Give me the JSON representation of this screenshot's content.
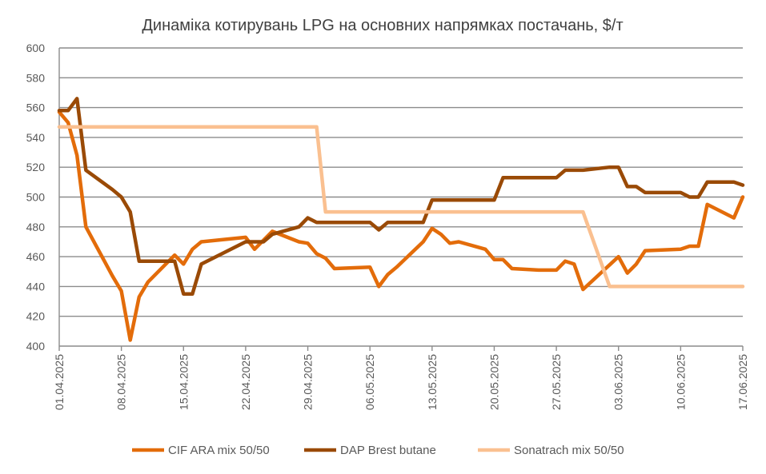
{
  "chart_data": {
    "type": "line",
    "title": "Динаміка котирувань LPG на основних напрямках постачань, $/т",
    "xlabel": "",
    "ylabel": "",
    "x_unit": "days since 01.04.2025",
    "xlim": [
      0,
      77
    ],
    "ylim": [
      400,
      600
    ],
    "y_ticks": [
      400,
      420,
      440,
      460,
      480,
      500,
      520,
      540,
      560,
      580,
      600
    ],
    "x_ticks": [
      {
        "day": 0,
        "label": "01.04.2025"
      },
      {
        "day": 7,
        "label": "08.04.2025"
      },
      {
        "day": 14,
        "label": "15.04.2025"
      },
      {
        "day": 21,
        "label": "22.04.2025"
      },
      {
        "day": 28,
        "label": "29.04.2025"
      },
      {
        "day": 35,
        "label": "06.05.2025"
      },
      {
        "day": 42,
        "label": "13.05.2025"
      },
      {
        "day": 49,
        "label": "20.05.2025"
      },
      {
        "day": 56,
        "label": "27.05.2025"
      },
      {
        "day": 63,
        "label": "03.06.2025"
      },
      {
        "day": 70,
        "label": "10.06.2025"
      },
      {
        "day": 77,
        "label": "17.06.2025"
      }
    ],
    "grid": true,
    "legend_position": "bottom",
    "series": [
      {
        "name": "CIF ARA mix 50/50",
        "color": "#E36C0A",
        "points": [
          [
            0,
            557
          ],
          [
            1,
            550
          ],
          [
            2,
            528
          ],
          [
            3,
            480
          ],
          [
            6,
            447
          ],
          [
            7,
            437
          ],
          [
            8,
            404
          ],
          [
            9,
            433
          ],
          [
            10,
            443
          ],
          [
            13,
            461
          ],
          [
            14,
            455
          ],
          [
            15,
            465
          ],
          [
            16,
            470
          ],
          [
            21,
            473
          ],
          [
            22,
            465
          ],
          [
            24,
            477
          ],
          [
            27,
            470
          ],
          [
            28,
            469
          ],
          [
            29,
            462
          ],
          [
            30,
            459
          ],
          [
            31,
            452
          ],
          [
            35,
            453
          ],
          [
            36,
            440
          ],
          [
            37,
            448
          ],
          [
            38,
            453
          ],
          [
            41,
            470
          ],
          [
            42,
            479
          ],
          [
            43,
            475
          ],
          [
            44,
            469
          ],
          [
            45,
            470
          ],
          [
            48,
            465
          ],
          [
            49,
            458
          ],
          [
            50,
            458
          ],
          [
            51,
            452
          ],
          [
            54,
            451
          ],
          [
            56,
            451
          ],
          [
            57,
            457
          ],
          [
            58,
            455
          ],
          [
            59,
            438
          ],
          [
            63,
            460
          ],
          [
            64,
            449
          ],
          [
            65,
            455
          ],
          [
            66,
            464
          ],
          [
            70,
            465
          ],
          [
            71,
            467
          ],
          [
            72,
            467
          ],
          [
            73,
            495
          ],
          [
            76,
            486
          ],
          [
            77,
            500
          ]
        ]
      },
      {
        "name": "DAP Brest butane",
        "color": "#9A4A06",
        "points": [
          [
            0,
            558
          ],
          [
            1,
            558
          ],
          [
            2,
            566
          ],
          [
            3,
            518
          ],
          [
            6,
            505
          ],
          [
            7,
            500
          ],
          [
            8,
            490
          ],
          [
            9,
            457
          ],
          [
            13,
            457
          ],
          [
            14,
            435
          ],
          [
            15,
            435
          ],
          [
            16,
            455
          ],
          [
            21,
            470
          ],
          [
            23,
            470
          ],
          [
            24,
            475
          ],
          [
            27,
            480
          ],
          [
            28,
            486
          ],
          [
            29,
            483
          ],
          [
            35,
            483
          ],
          [
            36,
            478
          ],
          [
            37,
            483
          ],
          [
            41,
            483
          ],
          [
            42,
            498
          ],
          [
            49,
            498
          ],
          [
            50,
            513
          ],
          [
            56,
            513
          ],
          [
            57,
            518
          ],
          [
            59,
            518
          ],
          [
            62,
            520
          ],
          [
            63,
            520
          ],
          [
            64,
            507
          ],
          [
            65,
            507
          ],
          [
            66,
            503
          ],
          [
            70,
            503
          ],
          [
            71,
            500
          ],
          [
            72,
            500
          ],
          [
            73,
            510
          ],
          [
            76,
            510
          ],
          [
            77,
            508
          ]
        ]
      },
      {
        "name": "Sonatrach mix 50/50",
        "color": "#FAC090",
        "points": [
          [
            0,
            547
          ],
          [
            29,
            547
          ],
          [
            30,
            490
          ],
          [
            59,
            490
          ],
          [
            62,
            440
          ],
          [
            77,
            440
          ]
        ]
      }
    ]
  }
}
